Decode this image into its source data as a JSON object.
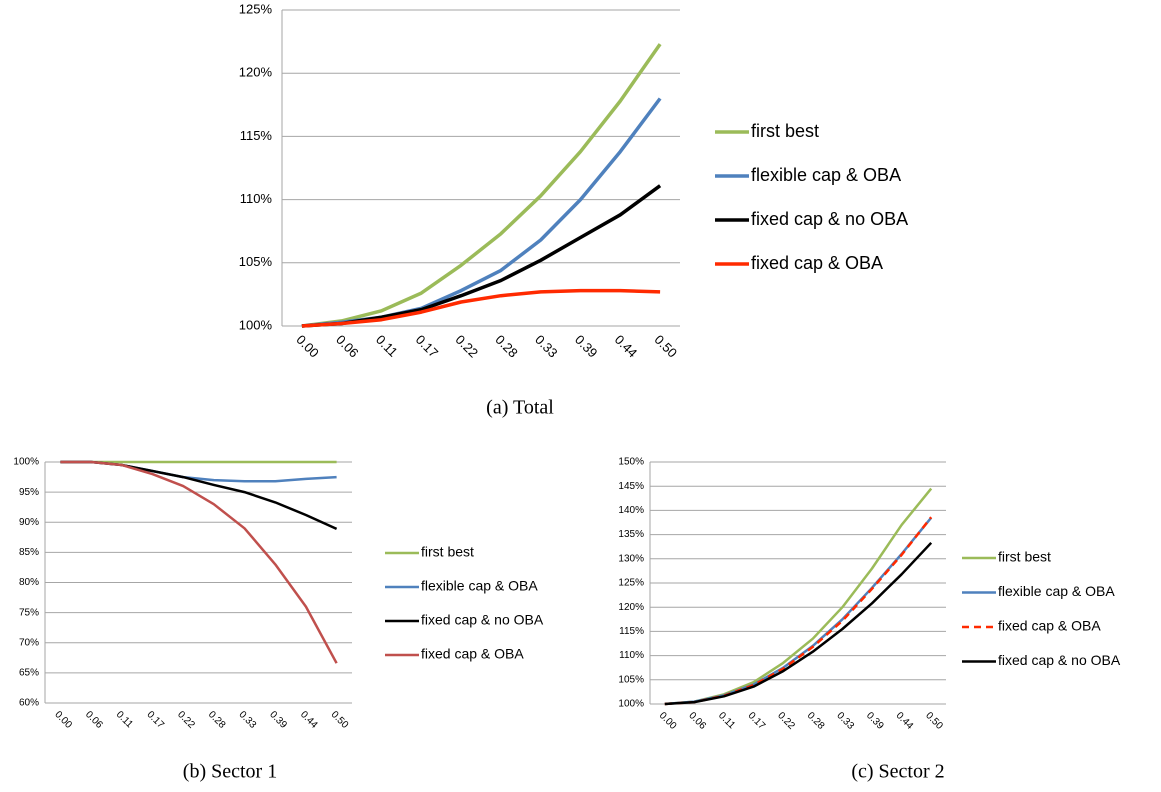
{
  "chart_data": [
    {
      "type": "line",
      "caption": "(a) Total",
      "categories": [
        "0.00",
        "0.06",
        "0.11",
        "0.17",
        "0.22",
        "0.28",
        "0.33",
        "0.39",
        "0.44",
        "0.50"
      ],
      "ylim": [
        100,
        125
      ],
      "yticks": [
        {
          "value": 100,
          "label": "100%"
        },
        {
          "value": 105,
          "label": "105%"
        },
        {
          "value": 110,
          "label": "110%"
        },
        {
          "value": 115,
          "label": "115%"
        },
        {
          "value": 120,
          "label": "120%"
        },
        {
          "value": 125,
          "label": "125%"
        }
      ],
      "grid": true,
      "legend": "right",
      "series": [
        {
          "name": "first best",
          "color": "#9bbb59",
          "values": [
            100,
            100.4,
            101.2,
            102.6,
            104.8,
            107.3,
            110.3,
            113.8,
            117.8,
            122.3
          ]
        },
        {
          "name": "flexible cap & OBA",
          "color": "#4f81bd",
          "values": [
            100,
            100.3,
            100.7,
            101.4,
            102.8,
            104.4,
            106.8,
            110.0,
            113.8,
            118.0
          ]
        },
        {
          "name": "fixed cap & no OBA",
          "color": "#000000",
          "values": [
            100,
            100.2,
            100.7,
            101.3,
            102.4,
            103.6,
            105.2,
            107.0,
            108.8,
            111.1
          ]
        },
        {
          "name": "fixed cap & OBA",
          "color": "#ff2a00",
          "values": [
            100,
            100.2,
            100.5,
            101.1,
            101.9,
            102.4,
            102.7,
            102.8,
            102.8,
            102.7
          ]
        }
      ]
    },
    {
      "type": "line",
      "caption": "(b) Sector 1",
      "categories": [
        "0.00",
        "0.06",
        "0.11",
        "0.17",
        "0.22",
        "0.28",
        "0.33",
        "0.39",
        "0.44",
        "0.50"
      ],
      "ylim": [
        60,
        100
      ],
      "yticks": [
        {
          "value": 60,
          "label": "60%"
        },
        {
          "value": 65,
          "label": "65%"
        },
        {
          "value": 70,
          "label": "70%"
        },
        {
          "value": 75,
          "label": "75%"
        },
        {
          "value": 80,
          "label": "80%"
        },
        {
          "value": 85,
          "label": "85%"
        },
        {
          "value": 90,
          "label": "90%"
        },
        {
          "value": 95,
          "label": "95%"
        },
        {
          "value": 100,
          "label": "100%"
        }
      ],
      "grid": true,
      "legend": "right",
      "series": [
        {
          "name": "first best",
          "color": "#9bbb59",
          "values": [
            100,
            100,
            100,
            100,
            100,
            100,
            100,
            100,
            100,
            100
          ]
        },
        {
          "name": "flexible cap & OBA",
          "color": "#4f81bd",
          "values": [
            100,
            100,
            99.5,
            98.5,
            97.5,
            97,
            96.8,
            96.8,
            97.2,
            97.5
          ]
        },
        {
          "name": "fixed cap & no OBA",
          "color": "#000000",
          "values": [
            100,
            100,
            99.5,
            98.5,
            97.5,
            96.2,
            95,
            93.3,
            91.2,
            88.9
          ]
        },
        {
          "name": "fixed cap & OBA",
          "color": "#c0504d",
          "values": [
            100,
            100,
            99.5,
            98,
            96,
            93,
            89,
            83,
            76,
            66.6
          ]
        }
      ]
    },
    {
      "type": "line",
      "caption": "(c) Sector 2",
      "categories": [
        "0.00",
        "0.06",
        "0.11",
        "0.17",
        "0.22",
        "0.28",
        "0.33",
        "0.39",
        "0.44",
        "0.50"
      ],
      "ylim": [
        100,
        150
      ],
      "yticks": [
        {
          "value": 100,
          "label": "100%"
        },
        {
          "value": 105,
          "label": "105%"
        },
        {
          "value": 110,
          "label": "110%"
        },
        {
          "value": 115,
          "label": "115%"
        },
        {
          "value": 120,
          "label": "120%"
        },
        {
          "value": 125,
          "label": "125%"
        },
        {
          "value": 130,
          "label": "130%"
        },
        {
          "value": 135,
          "label": "135%"
        },
        {
          "value": 140,
          "label": "140%"
        },
        {
          "value": 145,
          "label": "145%"
        },
        {
          "value": 150,
          "label": "150%"
        }
      ],
      "grid": true,
      "legend": "right",
      "series": [
        {
          "name": "first best",
          "color": "#9bbb59",
          "values": [
            100,
            100.5,
            102,
            104.5,
            108.5,
            113.5,
            120,
            128,
            137,
            144.5
          ]
        },
        {
          "name": "flexible cap & OBA",
          "color": "#4f81bd",
          "values": [
            100,
            100.5,
            101.8,
            104,
            107.5,
            112,
            117.5,
            124,
            131,
            138.5
          ]
        },
        {
          "name": "fixed cap & OBA",
          "color": "#ff2a00",
          "style": "dashed",
          "values": [
            100,
            100.4,
            101.7,
            103.9,
            107.3,
            111.8,
            117.2,
            123.8,
            130.8,
            138.6
          ]
        },
        {
          "name": "fixed cap & no OBA",
          "color": "#000000",
          "values": [
            100,
            100.4,
            101.6,
            103.6,
            106.8,
            110.8,
            115.5,
            120.8,
            126.8,
            133.3
          ]
        }
      ]
    }
  ]
}
